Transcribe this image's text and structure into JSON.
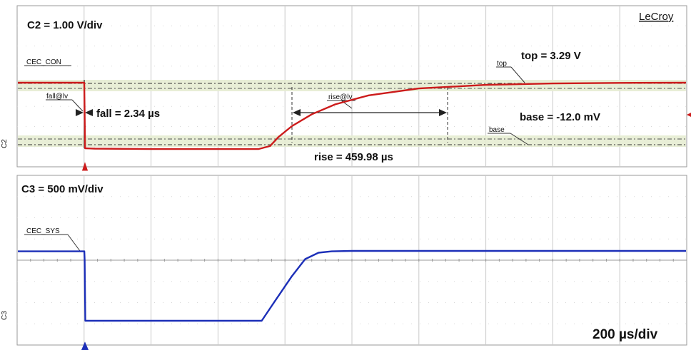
{
  "brand": "LeCroy",
  "timebase": "200 µs/div",
  "chart_data": [
    {
      "type": "line",
      "channel": "C2",
      "scale_label": "C2 = 1.00 V/div",
      "trace_label": "CEC_CON",
      "color": "#cc1b1b",
      "x_unit": "µs",
      "x_range": [
        -200,
        1800
      ],
      "y_unit": "V",
      "y_range": [
        -0.6,
        4.0
      ],
      "grid": true,
      "series": [
        {
          "name": "CEC_CON",
          "x": [
            -200,
            -1.2,
            1.2,
            30,
            200,
            520,
            555,
            580,
            620,
            680,
            750,
            850,
            1000,
            1200,
            1400,
            1600,
            1800
          ],
          "y": [
            3.29,
            3.29,
            -0.012,
            -0.03,
            -0.05,
            -0.05,
            0.1,
            0.55,
            1.1,
            1.7,
            2.2,
            2.65,
            3.0,
            3.18,
            3.25,
            3.28,
            3.29
          ]
        }
      ],
      "measurements": {
        "top": "top = 3.29 V",
        "base": "base = -12.0 mV",
        "fall": "fall = 2.34 µs",
        "rise": "rise =  459.98 µs"
      },
      "cursor_tags": {
        "top": "top",
        "base": "base",
        "fall": "fall@lv",
        "rise": "rise@lv"
      },
      "ref_levels": {
        "top_v": 3.29,
        "base_v": -0.012,
        "rise_start_us": 555,
        "rise_end_us": 1015,
        "fall_us": 0
      }
    },
    {
      "type": "line",
      "channel": "C3",
      "scale_label": "C3 = 500 mV/div",
      "trace_label": "CEC_SYS",
      "color": "#1c2fb8",
      "x_unit": "µs",
      "x_range": [
        -200,
        1800
      ],
      "y_unit": "V",
      "y_range": [
        -0.35,
        1.9
      ],
      "grid": true,
      "series": [
        {
          "name": "CEC_SYS",
          "x": [
            -200,
            -1,
            0,
            2,
            100,
            300,
            450,
            530,
            560,
            620,
            660,
            700,
            740,
            800,
            1000,
            1400,
            1800
          ],
          "y": [
            1.55,
            1.55,
            1.35,
            0.02,
            0.02,
            0.02,
            0.02,
            0.02,
            0.35,
            1.0,
            1.38,
            1.52,
            1.55,
            1.56,
            1.56,
            1.56,
            1.56
          ]
        }
      ]
    }
  ]
}
